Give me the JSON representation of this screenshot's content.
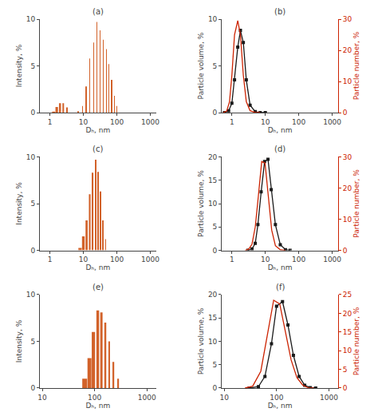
{
  "chart_data": [
    {
      "type": "bar",
      "title": "(a)",
      "xlabel": "Dₕ, nm",
      "ylabel": "Intensity, %",
      "log": "x",
      "grid": false,
      "color": "#d2622a",
      "xlim": [
        0.5,
        1500
      ],
      "xticks": [
        1,
        10,
        100,
        1000
      ],
      "ylim": [
        0,
        10
      ],
      "yticks": [
        0,
        5,
        10
      ],
      "x": [
        1.3,
        1.6,
        2.0,
        2.5,
        3.2,
        7.0,
        9.5,
        12.0,
        15.5,
        20.0,
        25.0,
        31.0,
        39.0,
        48.0,
        58.0,
        70.0,
        85.0,
        100.0
      ],
      "values": [
        0.1,
        0.6,
        1.0,
        1.0,
        0.55,
        0.15,
        0.7,
        2.8,
        5.8,
        7.5,
        9.7,
        8.8,
        7.8,
        6.8,
        5.2,
        3.5,
        1.8,
        0.7
      ]
    },
    {
      "type": "line",
      "title": "(b)",
      "xlabel": "Dₕ, nm",
      "ylabel": "Particle volume, %",
      "y2label": "Particle number, %",
      "log": "x",
      "grid": false,
      "xlim": [
        0.5,
        1500
      ],
      "xticks": [
        1,
        10,
        100,
        1000
      ],
      "ylim": [
        0,
        10
      ],
      "yticks": [
        0,
        5,
        10
      ],
      "y2lim": [
        0,
        30
      ],
      "y2ticks": [
        0,
        10,
        20,
        30
      ],
      "series": [
        {
          "color": "#1a1a1a",
          "marker": "square",
          "x": [
            0.6,
            0.8,
            1.0,
            1.2,
            1.5,
            1.8,
            2.2,
            2.7,
            3.5,
            5.0,
            7.0,
            10.0
          ],
          "values": [
            0.0,
            0.2,
            1.0,
            3.5,
            7.0,
            8.8,
            7.5,
            3.5,
            0.8,
            0.1,
            0.0,
            0.0
          ]
        },
        {
          "color": "#cc2200",
          "marker": "none",
          "axis": "y2",
          "x": [
            0.55,
            0.7,
            0.85,
            1.0,
            1.2,
            1.5,
            1.8,
            2.2,
            2.7,
            3.5,
            5.0,
            7.0
          ],
          "values": [
            0.0,
            0.5,
            3.5,
            12.0,
            25.0,
            29.5,
            25.0,
            12.0,
            3.5,
            0.6,
            0.05,
            0.0
          ]
        }
      ]
    },
    {
      "type": "bar",
      "title": "(c)",
      "xlabel": "Dₕ, nm",
      "ylabel": "Intensity, %",
      "log": "x",
      "grid": false,
      "color": "#d2622a",
      "xlim": [
        0.5,
        1500
      ],
      "xticks": [
        1,
        10,
        100,
        1000
      ],
      "ylim": [
        0,
        10
      ],
      "yticks": [
        0,
        5,
        10
      ],
      "x": [
        8.0,
        10.0,
        12.5,
        15.5,
        19.0,
        23.0,
        27.0,
        32.0,
        38.0,
        46.0
      ],
      "values": [
        0.25,
        1.5,
        3.2,
        6.0,
        8.3,
        9.7,
        8.4,
        6.3,
        3.2,
        1.2
      ]
    },
    {
      "type": "line",
      "title": "(d)",
      "xlabel": "Dₕ, nm",
      "ylabel": "Particle volume, %",
      "y2label": "Particle number, %",
      "log": "x",
      "grid": false,
      "xlim": [
        0.5,
        1500
      ],
      "xticks": [
        1,
        10,
        100,
        1000
      ],
      "ylim": [
        0,
        20
      ],
      "yticks": [
        0,
        5,
        10,
        15,
        20
      ],
      "y2lim": [
        0,
        30
      ],
      "y2ticks": [
        0,
        10,
        20,
        30
      ],
      "series": [
        {
          "color": "#1a1a1a",
          "marker": "square",
          "x": [
            3.0,
            4.0,
            5.0,
            6.0,
            7.5,
            9.5,
            12.0,
            15.0,
            20.0,
            28.0,
            40.0,
            55.0
          ],
          "values": [
            0.0,
            0.3,
            1.5,
            5.5,
            12.5,
            19.0,
            19.5,
            13.0,
            5.5,
            1.2,
            0.15,
            0.0
          ]
        },
        {
          "color": "#cc2200",
          "marker": "none",
          "axis": "y2",
          "x": [
            2.5,
            3.2,
            4.0,
            5.0,
            6.2,
            7.8,
            9.8,
            12.5,
            15.5,
            20.0,
            28.0,
            40.0
          ],
          "values": [
            0.0,
            0.4,
            2.0,
            7.5,
            17.5,
            28.5,
            28.0,
            17.0,
            6.5,
            1.5,
            0.2,
            0.0
          ]
        }
      ]
    },
    {
      "type": "bar",
      "title": "(e)",
      "xlabel": "Dₕ, nm",
      "ylabel": "Intensity, %",
      "log": "x",
      "grid": false,
      "color": "#d2622a",
      "xlim": [
        9,
        1500
      ],
      "xticks": [
        10,
        100,
        1000
      ],
      "ylim": [
        0,
        10
      ],
      "yticks": [
        0,
        5,
        10
      ],
      "x": [
        65,
        80,
        95,
        115,
        135,
        160,
        190,
        230,
        285
      ],
      "values": [
        1.0,
        3.2,
        6.0,
        8.3,
        8.1,
        7.0,
        5.0,
        2.8,
        1.0
      ]
    },
    {
      "type": "line",
      "title": "(f)",
      "xlabel": "Dₕ, nm",
      "ylabel": "Particle volume, %",
      "y2label": "Particle number, %",
      "log": "x",
      "grid": false,
      "xlim": [
        9,
        1500
      ],
      "xticks": [
        10,
        100,
        1000
      ],
      "ylim": [
        0,
        20
      ],
      "yticks": [
        0,
        5,
        10,
        15,
        20
      ],
      "y2lim": [
        0,
        25
      ],
      "y2ticks": [
        0,
        5,
        10,
        15,
        20,
        25
      ],
      "series": [
        {
          "color": "#1a1a1a",
          "marker": "square",
          "x": [
            30,
            45,
            60,
            80,
            100,
            130,
            165,
            210,
            270,
            345,
            440,
            560
          ],
          "values": [
            0.0,
            0.3,
            2.5,
            9.5,
            17.5,
            18.5,
            13.5,
            7.0,
            2.5,
            0.6,
            0.1,
            0.0
          ]
        },
        {
          "color": "#cc2200",
          "marker": "none",
          "axis": "y2",
          "x": [
            25,
            35,
            50,
            68,
            88,
            115,
            148,
            190,
            245,
            315,
            400,
            510
          ],
          "values": [
            0.0,
            0.5,
            4.5,
            14.5,
            23.5,
            22.5,
            15.0,
            7.5,
            2.8,
            0.8,
            0.1,
            0.0
          ]
        }
      ]
    }
  ]
}
